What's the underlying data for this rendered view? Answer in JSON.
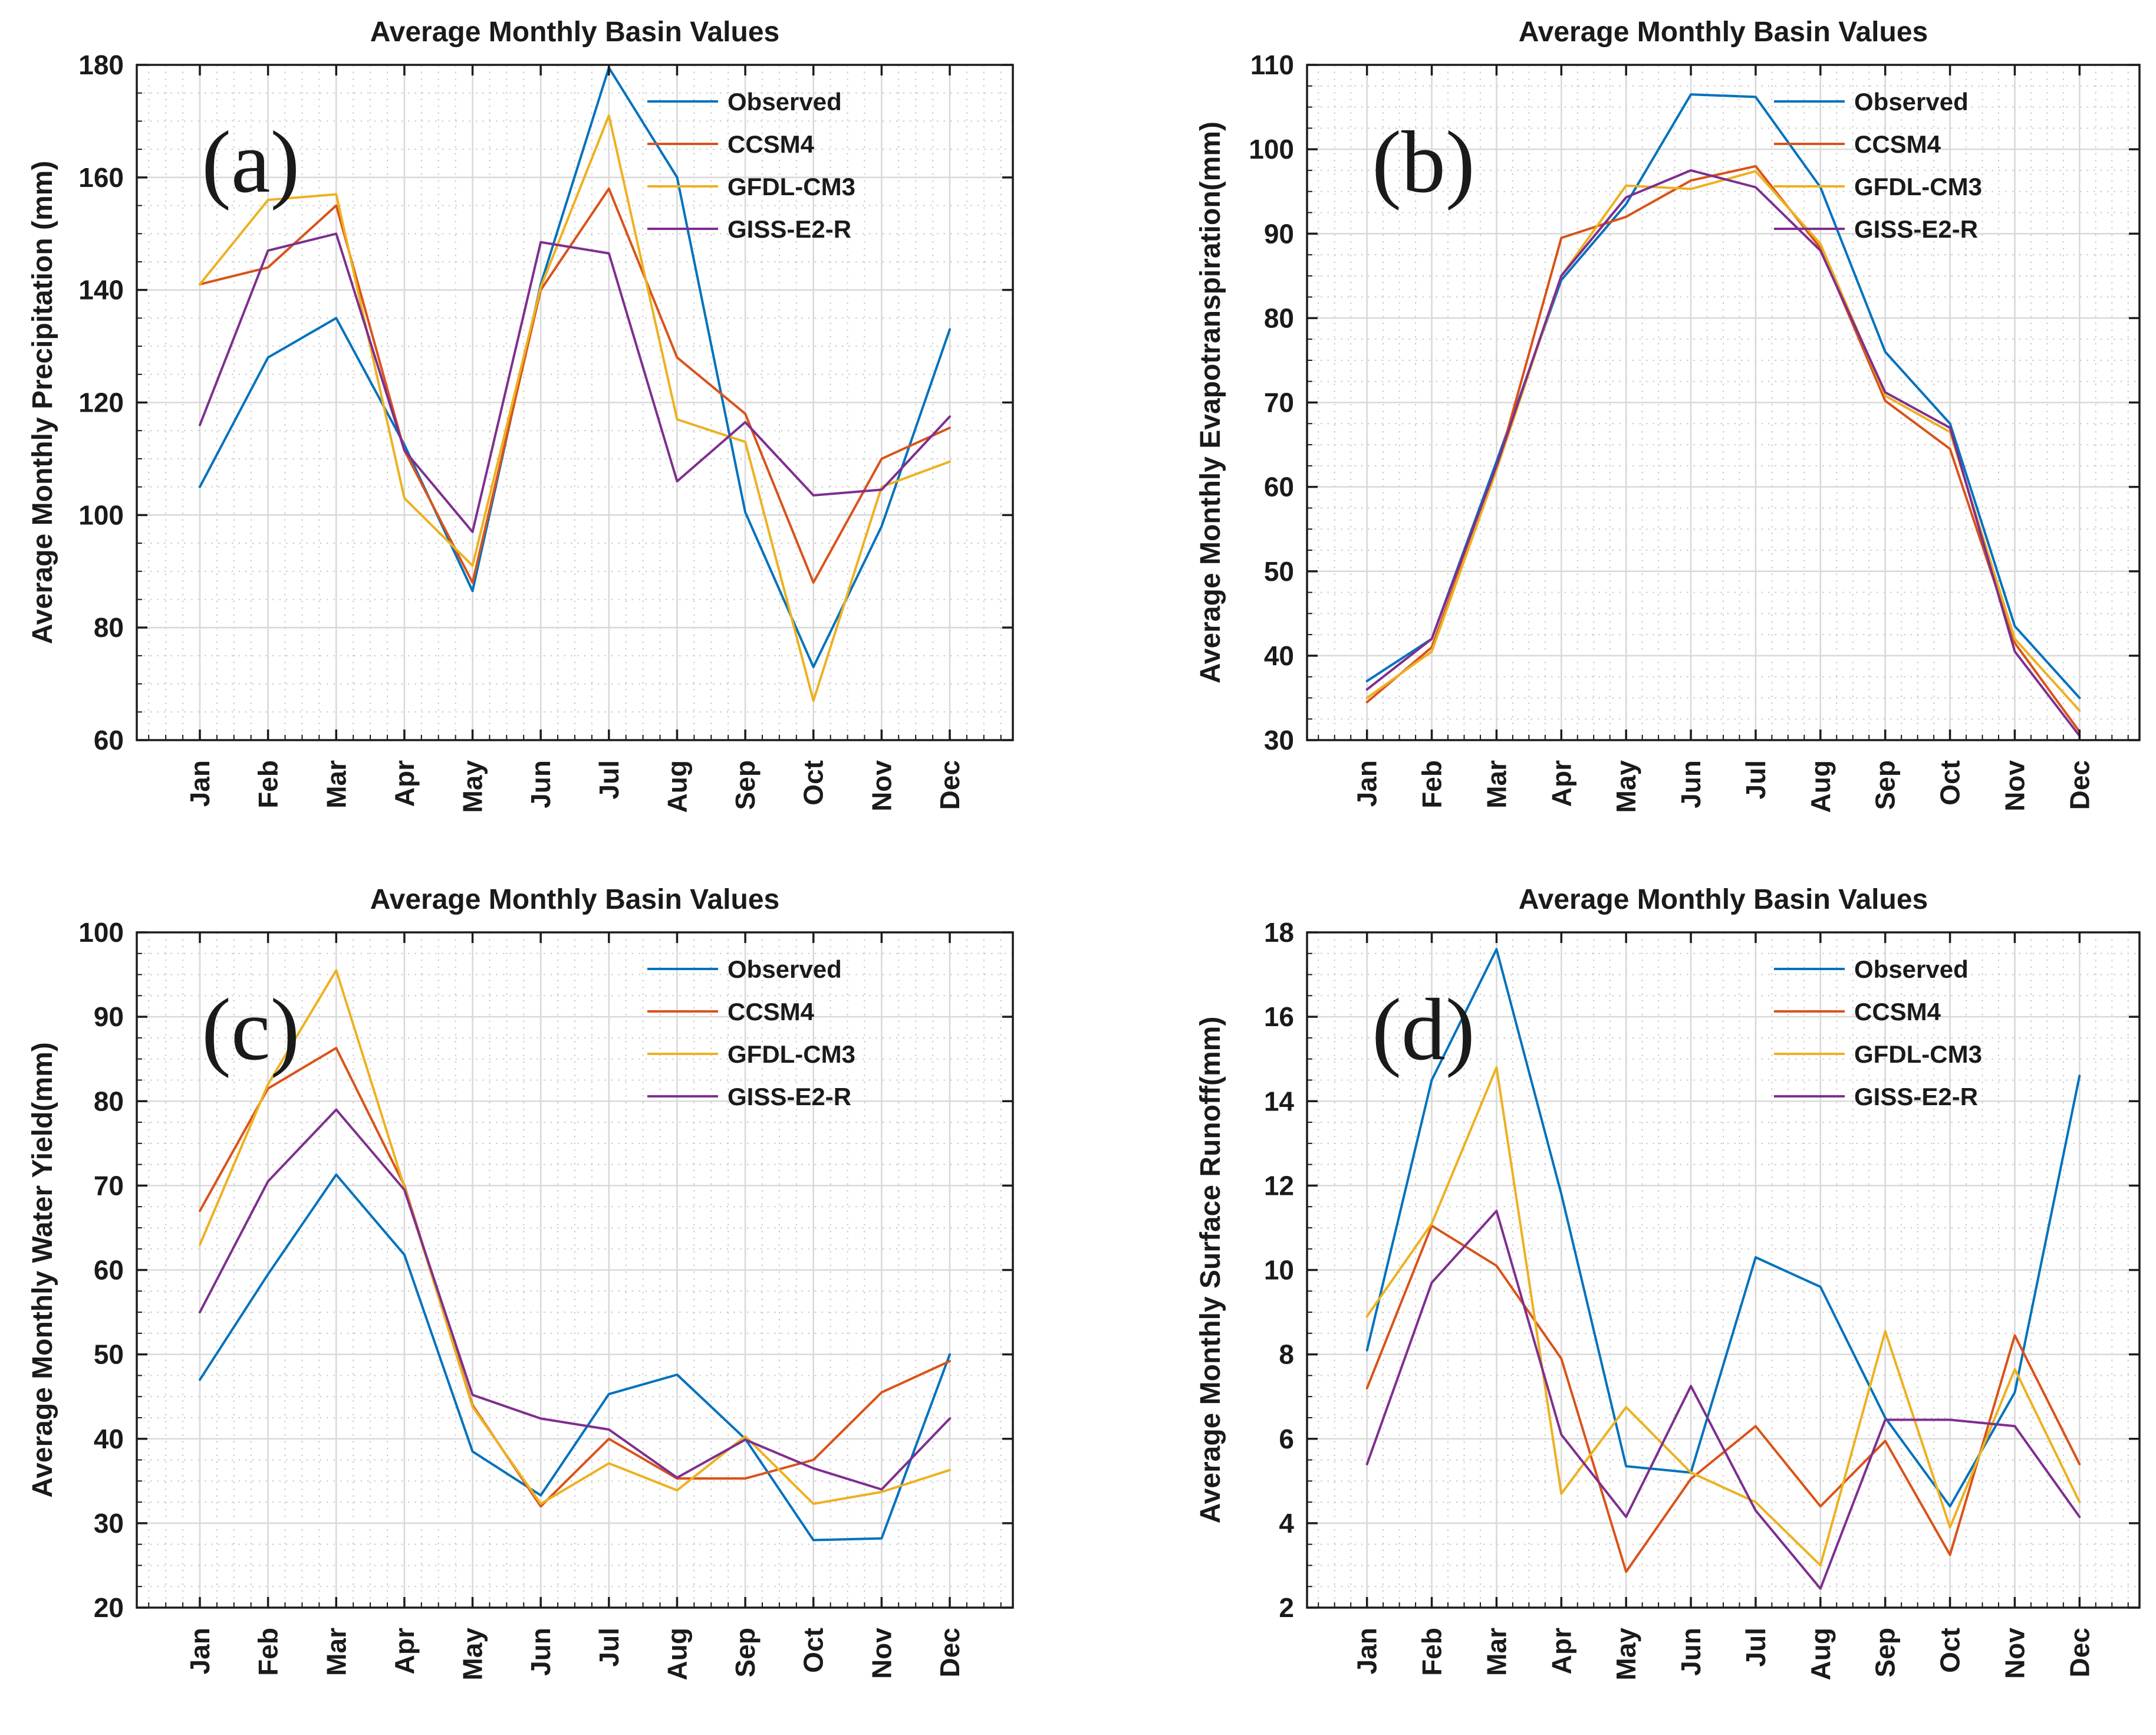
{
  "figure": {
    "background": "#ffffff",
    "panel_letters": [
      "(a)",
      "(b)",
      "(c)",
      "(d)"
    ],
    "shared_title": "Average Monthly Basin Values",
    "legend_entries": [
      "Observed",
      "CCSM4",
      "GFDL-CM3",
      "GISS-E2-R"
    ],
    "palette": {
      "observed": "#0072BD",
      "ccsm4": "#D95319",
      "gfdl_cm3": "#EDB120",
      "giss_e2_r": "#7E2F8E"
    }
  },
  "chart_data": [
    {
      "panel": "(a)",
      "type": "line",
      "title": "Average Monthly Basin Values",
      "xlabel": "",
      "ylabel": "Average Monthly Precipitation (mm)",
      "ylim": [
        60,
        180
      ],
      "ytick_step": 20,
      "y_minor_step": 5,
      "grid": "major-solid + minor-dotted",
      "legend_position": "top-right-inside",
      "legend_border": false,
      "categories": [
        "Jan",
        "Feb",
        "Mar",
        "Apr",
        "May",
        "Jun",
        "Jul",
        "Aug",
        "Sep",
        "Oct",
        "Nov",
        "Dec"
      ],
      "series": [
        {
          "name": "Observed",
          "color": "#0072BD",
          "values": [
            105,
            128,
            135,
            112.5,
            86.5,
            141,
            179.5,
            160,
            100.5,
            73,
            98,
            133
          ]
        },
        {
          "name": "CCSM4",
          "color": "#D95319",
          "values": [
            141,
            144,
            155,
            111.5,
            88,
            140,
            158,
            128,
            118,
            88,
            110,
            115.5
          ]
        },
        {
          "name": "GFDL-CM3",
          "color": "#EDB120",
          "values": [
            141,
            156,
            157,
            103,
            91,
            140.5,
            171,
            117,
            113,
            67,
            105,
            109.5
          ]
        },
        {
          "name": "GISS-E2-R",
          "color": "#7E2F8E",
          "values": [
            116,
            147,
            150,
            111.5,
            97,
            148.5,
            146.5,
            106,
            116.5,
            103.5,
            104.5,
            117.5
          ]
        }
      ]
    },
    {
      "panel": "(b)",
      "type": "line",
      "title": "Average Monthly Basin Values",
      "xlabel": "",
      "ylabel": "Average Monthly Evapotranspiration(mm)",
      "ylim": [
        30,
        110
      ],
      "ytick_step": 10,
      "y_minor_step": 2.5,
      "grid": "major-solid + minor-dotted",
      "legend_position": "top-right-inside",
      "legend_border": false,
      "categories": [
        "Jan",
        "Feb",
        "Mar",
        "Apr",
        "May",
        "Jun",
        "Jul",
        "Aug",
        "Sep",
        "Oct",
        "Nov",
        "Dec"
      ],
      "series": [
        {
          "name": "Observed",
          "color": "#0072BD",
          "values": [
            37,
            42,
            63,
            84.5,
            93.5,
            106.5,
            106.2,
            95.5,
            76,
            67.5,
            43.5,
            35
          ]
        },
        {
          "name": "CCSM4",
          "color": "#D95319",
          "values": [
            34.5,
            41,
            62,
            89.5,
            92,
            96.3,
            98,
            88.3,
            70.2,
            64.5,
            41.5,
            31
          ]
        },
        {
          "name": "GFDL-CM3",
          "color": "#EDB120",
          "values": [
            35,
            40.5,
            62,
            85,
            95.7,
            95.3,
            97.4,
            88.8,
            70.8,
            66.5,
            42,
            33.5
          ]
        },
        {
          "name": "GISS-E2-R",
          "color": "#7E2F8E",
          "values": [
            36,
            42,
            62.5,
            85,
            94.3,
            97.5,
            95.5,
            88,
            71.2,
            67,
            40.5,
            30.5
          ]
        }
      ]
    },
    {
      "panel": "(c)",
      "type": "line",
      "title": "Average Monthly Basin Values",
      "xlabel": "",
      "ylabel": "Average Monthly Water Yield(mm)",
      "ylim": [
        20,
        100
      ],
      "ytick_step": 10,
      "y_minor_step": 2.5,
      "grid": "major-solid + minor-dotted",
      "legend_position": "top-right-inside",
      "legend_border": false,
      "categories": [
        "Jan",
        "Feb",
        "Mar",
        "Apr",
        "May",
        "Jun",
        "Jul",
        "Aug",
        "Sep",
        "Oct",
        "Nov",
        "Dec"
      ],
      "series": [
        {
          "name": "Observed",
          "color": "#0072BD",
          "values": [
            47,
            59.5,
            71.3,
            61.8,
            38.5,
            33.3,
            45.3,
            47.6,
            40,
            28,
            28.2,
            50
          ]
        },
        {
          "name": "CCSM4",
          "color": "#D95319",
          "values": [
            67,
            81.5,
            86.3,
            70,
            44,
            32,
            40,
            35.3,
            35.3,
            37.5,
            45.5,
            49.2
          ]
        },
        {
          "name": "GFDL-CM3",
          "color": "#EDB120",
          "values": [
            63,
            82,
            95.5,
            69.8,
            43.8,
            32.3,
            37.1,
            33.9,
            40.3,
            32.3,
            33.7,
            36.3
          ]
        },
        {
          "name": "GISS-E2-R",
          "color": "#7E2F8E",
          "values": [
            55,
            70.5,
            79,
            69.5,
            45.2,
            42.4,
            41.1,
            35.4,
            39.9,
            36.5,
            34,
            42.4
          ]
        }
      ]
    },
    {
      "panel": "(d)",
      "type": "line",
      "title": "Average Monthly Basin Values",
      "xlabel": "",
      "ylabel": "Average Monthly Surface Runoff(mm)",
      "ylim": [
        2,
        18
      ],
      "ytick_step": 2,
      "y_minor_step": 0.5,
      "grid": "major-solid + minor-dotted",
      "legend_position": "top-right-inside",
      "legend_border": false,
      "categories": [
        "Jan",
        "Feb",
        "Mar",
        "Apr",
        "May",
        "Jun",
        "Jul",
        "Aug",
        "Sep",
        "Oct",
        "Nov",
        "Dec"
      ],
      "series": [
        {
          "name": "Observed",
          "color": "#0072BD",
          "values": [
            8.1,
            14.5,
            17.6,
            11.8,
            5.35,
            5.2,
            10.3,
            9.6,
            6.5,
            4.4,
            7.1,
            14.6
          ]
        },
        {
          "name": "CCSM4",
          "color": "#D95319",
          "values": [
            7.2,
            11.05,
            10.1,
            7.9,
            2.85,
            5.05,
            6.3,
            4.4,
            5.95,
            3.25,
            8.45,
            5.4
          ]
        },
        {
          "name": "GFDL-CM3",
          "color": "#EDB120",
          "values": [
            8.9,
            11.1,
            14.8,
            4.7,
            6.75,
            5.2,
            4.5,
            3.0,
            8.55,
            3.9,
            7.65,
            4.5
          ]
        },
        {
          "name": "GISS-E2-R",
          "color": "#7E2F8E",
          "values": [
            5.4,
            9.7,
            11.4,
            6.1,
            4.15,
            7.25,
            4.3,
            2.45,
            6.45,
            6.45,
            6.3,
            4.15
          ]
        }
      ]
    }
  ]
}
